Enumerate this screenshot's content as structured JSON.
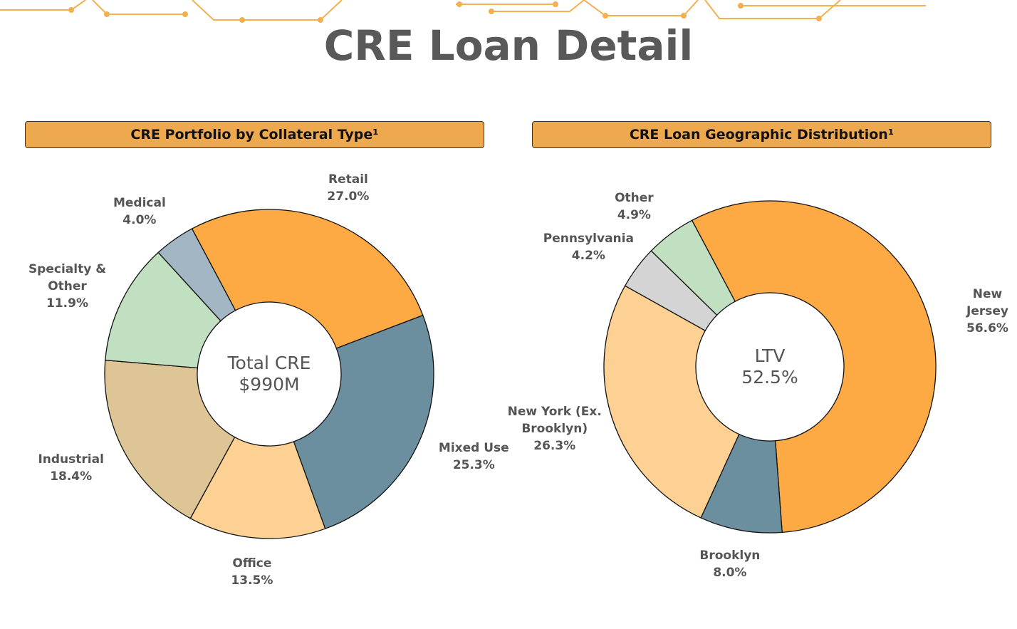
{
  "title": "CRE Loan Detail",
  "chart_data": [
    {
      "type": "pie",
      "title": "CRE Portfolio by Collateral Type¹",
      "center_label": [
        "Total CRE",
        "$990M"
      ],
      "categories": [
        "Retail",
        "Mixed Use",
        "Office",
        "Industrial",
        "Specialty & Other",
        "Medical"
      ],
      "values": [
        27.0,
        25.3,
        13.5,
        18.4,
        11.9,
        4.0
      ],
      "value_labels": [
        "27.0%",
        "25.3%",
        "13.5%",
        "18.4%",
        "11.9%",
        "4.0%"
      ],
      "colors": [
        "#fda944",
        "#6b8f9e",
        "#fdd094",
        "#dec595",
        "#c1dfc1",
        "#a2b7c3"
      ]
    },
    {
      "type": "pie",
      "title": "CRE Loan Geographic Distribution¹",
      "center_label": [
        "LTV",
        "52.5%"
      ],
      "categories": [
        "New Jersey",
        "Brooklyn",
        "New York (Ex. Brooklyn)",
        "Pennsylvania",
        "Other"
      ],
      "values": [
        56.6,
        8.0,
        26.3,
        4.2,
        4.9
      ],
      "value_labels": [
        "56.6%",
        "8.0%",
        "26.3%",
        "4.2%",
        "4.9%"
      ],
      "colors": [
        "#fda944",
        "#6b8f9e",
        "#fdd094",
        "#d4d4d4",
        "#c1dfc1"
      ]
    }
  ]
}
